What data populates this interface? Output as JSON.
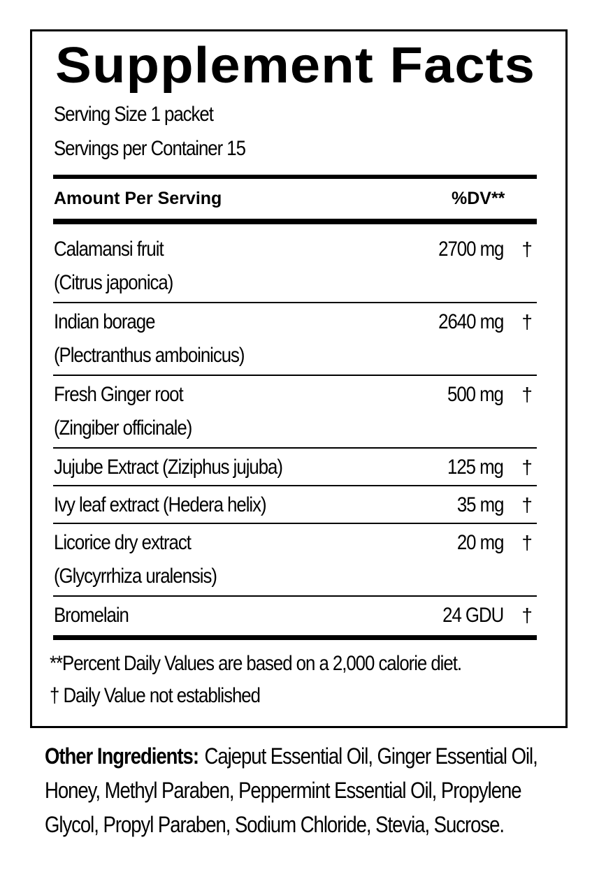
{
  "title": "Supplement Facts",
  "serving_size": "Serving Size 1 packet",
  "servings_per_container": "Servings per Container 15",
  "header": {
    "amount": "Amount Per Serving",
    "dv": "%DV**"
  },
  "rows": [
    {
      "name": "Calamansi fruit",
      "sub": "(Citrus japonica)",
      "amount": "2700 mg",
      "dv": "†"
    },
    {
      "name": "Indian borage",
      "sub": "(Plectranthus amboinicus)",
      "amount": "2640 mg",
      "dv": "†"
    },
    {
      "name": "Fresh Ginger root",
      "sub": "(Zingiber officinale)",
      "amount": "500 mg",
      "dv": "†"
    },
    {
      "name": "Jujube Extract (Ziziphus jujuba)",
      "sub": "",
      "amount": "125 mg",
      "dv": "†"
    },
    {
      "name": "Ivy leaf extract (Hedera helix)",
      "sub": "",
      "amount": "35 mg",
      "dv": "†"
    },
    {
      "name": "Licorice dry extract",
      "sub": "(Glycyrrhiza uralensis)",
      "amount": "20 mg",
      "dv": "†"
    },
    {
      "name": "Bromelain",
      "sub": "",
      "amount": "24 GDU",
      "dv": "†"
    }
  ],
  "footnotes": [
    "**Percent Daily Values are based on a 2,000 calorie diet.",
    "† Daily Value not established"
  ],
  "other_ingredients": {
    "label": "Other Ingredients:",
    "text": "Cajeput Essential Oil, Ginger Essential Oil, Honey, Methyl Paraben, Peppermint Essential Oil, Propylene Glycol, Propyl Paraben, Sodium Chloride, Stevia, Sucrose."
  }
}
